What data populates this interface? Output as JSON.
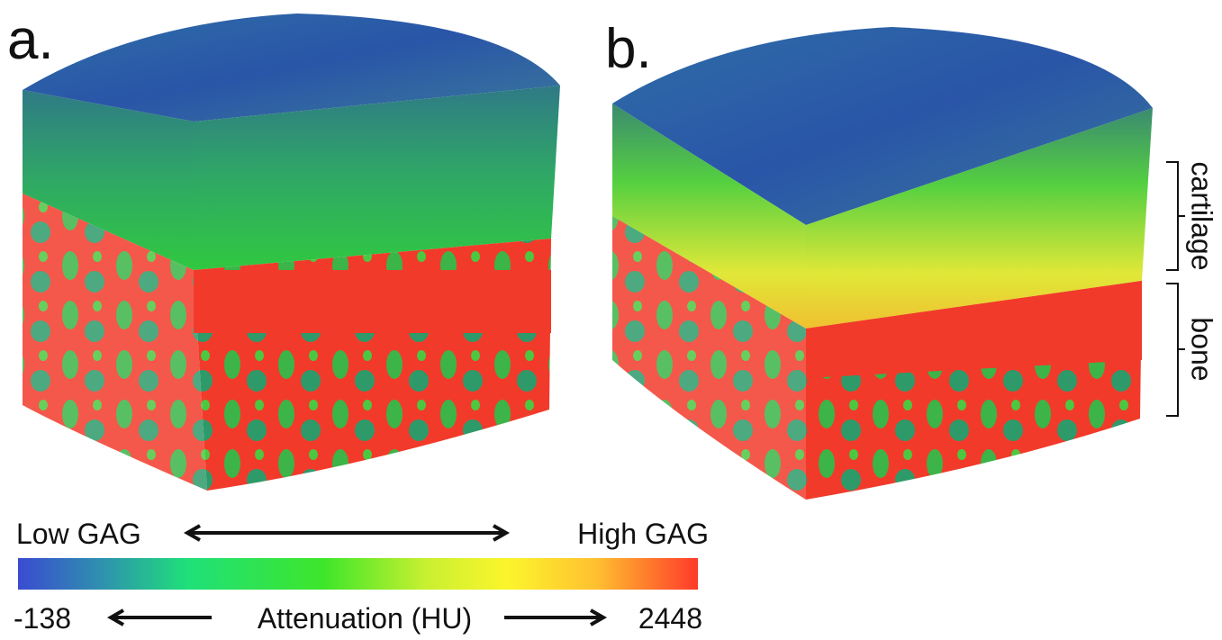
{
  "panels": [
    {
      "label": "a."
    },
    {
      "label": "b."
    }
  ],
  "regions": {
    "cartilage": "cartilage",
    "bone": "bone"
  },
  "colorbar": {
    "low_label": "Low GAG",
    "high_label": "High GAG",
    "axis_label": "Attenuation (HU)",
    "min": -138,
    "max": 2448
  }
}
